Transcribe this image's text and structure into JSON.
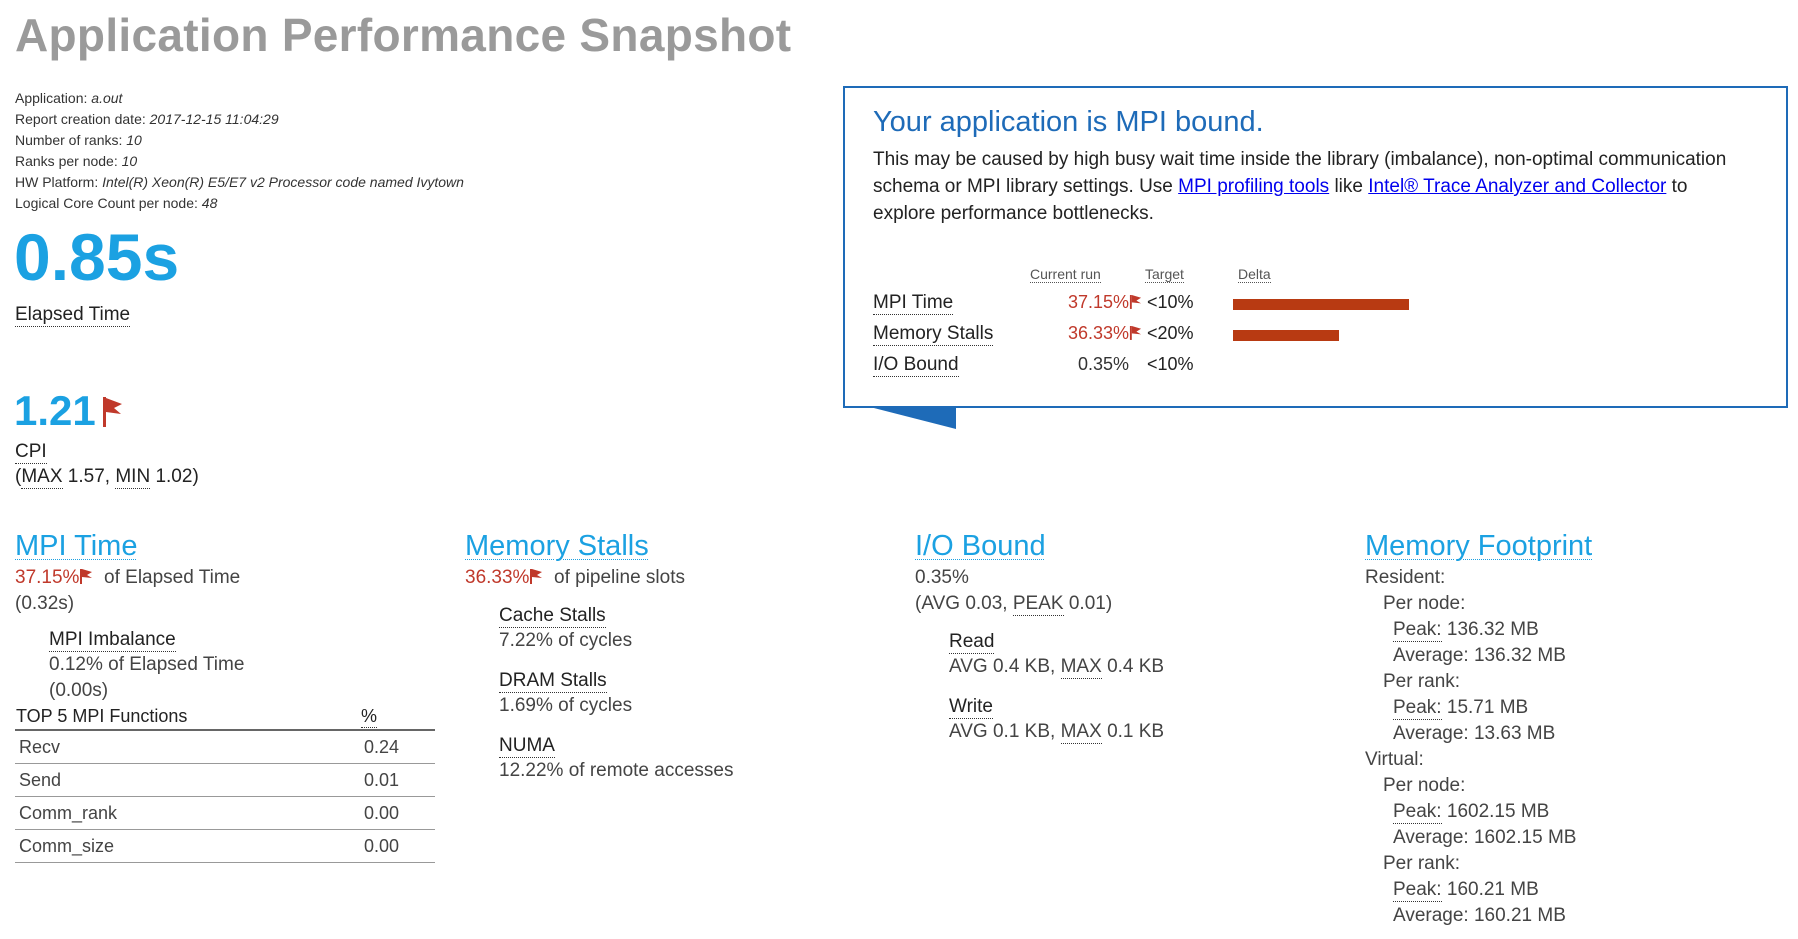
{
  "title": "Application Performance Snapshot",
  "meta": [
    {
      "label": "Application:",
      "value": "a.out"
    },
    {
      "label": "Report creation date:",
      "value": "2017-12-15 11:04:29"
    },
    {
      "label": "Number of ranks:",
      "value": "10"
    },
    {
      "label": "Ranks per node:",
      "value": "10"
    },
    {
      "label": "HW Platform:",
      "value": "Intel(R) Xeon(R) E5/E7 v2 Processor code named Ivytown"
    },
    {
      "label": "Logical Core Count per node:",
      "value": "48"
    }
  ],
  "elapsed": {
    "value": "0.85s",
    "label": "Elapsed Time"
  },
  "cpi": {
    "value": "1.21",
    "label": "CPI",
    "max_label": "MAX",
    "max": "1.57",
    "min_label": "MIN",
    "min": "1.02"
  },
  "callout": {
    "heading": "Your application is MPI bound.",
    "text1": "This may be caused by high busy wait time inside the library (imbalance), non-optimal communication",
    "text2": "schema or MPI library settings. Use",
    "link1": "MPI profiling tools",
    "text3": "like",
    "link2": "Intel® Trace Analyzer and Collector",
    "text4": "to",
    "text5": "explore performance bottlenecks.",
    "headers": {
      "current": "Current run",
      "target": "Target",
      "delta": "Delta"
    },
    "rows": [
      {
        "metric": "MPI Time",
        "current": "37.15%",
        "flagged": true,
        "target": "<10%",
        "delta": 0.2715
      },
      {
        "metric": "Memory Stalls",
        "current": "36.33%",
        "flagged": true,
        "target": "<20%",
        "delta": 0.1633
      },
      {
        "metric": "I/O Bound",
        "current": "0.35%",
        "flagged": false,
        "target": "<10%",
        "delta": 0
      }
    ]
  },
  "mpi": {
    "title": "MPI Time",
    "value": "37.15%",
    "suffix": "of Elapsed Time",
    "secs": "(0.32s)",
    "imbalance_label": "MPI Imbalance",
    "imbalance_value": "0.12% of Elapsed Time",
    "imbalance_secs": "(0.00s)",
    "top_header": "TOP 5 MPI Functions",
    "pct_header": "%",
    "functions": [
      {
        "name": "Recv",
        "pct": "0.24"
      },
      {
        "name": "Send",
        "pct": "0.01"
      },
      {
        "name": "Comm_rank",
        "pct": "0.00"
      },
      {
        "name": "Comm_size",
        "pct": "0.00"
      }
    ]
  },
  "memory_stalls": {
    "title": "Memory Stalls",
    "value": "36.33%",
    "suffix": "of pipeline slots",
    "items": [
      {
        "label": "Cache Stalls",
        "value": "7.22% of cycles"
      },
      {
        "label": "DRAM Stalls",
        "value": "1.69% of cycles"
      },
      {
        "label": "NUMA",
        "value": "12.22% of remote accesses"
      }
    ]
  },
  "io": {
    "title": "I/O Bound",
    "value": "0.35%",
    "avg_prefix": "(AVG 0.03,",
    "peak_label": "PEAK",
    "peak_suffix": "0.01)",
    "read_label": "Read",
    "read_avg": "AVG 0.4 KB,",
    "read_max_label": "MAX",
    "read_max": "0.4 KB",
    "write_label": "Write",
    "write_avg": "AVG 0.1 KB,",
    "write_max_label": "MAX",
    "write_max": "0.1 KB"
  },
  "footprint": {
    "title": "Memory Footprint",
    "resident": "Resident:",
    "virtual": "Virtual:",
    "per_node": "Per node:",
    "per_rank": "Per rank:",
    "peak_label": "Peak:",
    "average_label": "Average:",
    "res_node_peak": "136.32 MB",
    "res_node_avg": "136.32 MB",
    "res_rank_peak": "15.71 MB",
    "res_rank_avg": "13.63 MB",
    "virt_node_peak": "1602.15 MB",
    "virt_node_avg": "1602.15 MB",
    "virt_rank_peak": "160.21 MB",
    "virt_rank_avg": "160.21 MB"
  },
  "colors": {
    "accent": "#1ba1e2",
    "warning": "#c0392b",
    "callout_border": "#1e6bb8",
    "bar": "#b83a12"
  }
}
